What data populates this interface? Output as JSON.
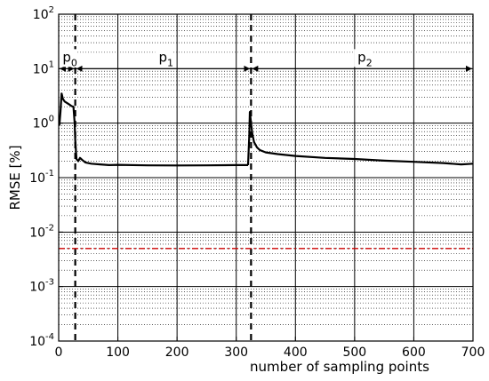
{
  "chart_data": {
    "type": "line",
    "title": "",
    "xlabel": "number of sampling points",
    "ylabel": "RMSE [%]",
    "xlim": [
      0,
      700
    ],
    "ylim": [
      0.0001,
      100
    ],
    "yscale": "log",
    "grid": true,
    "x_ticks": [
      0,
      100,
      200,
      300,
      400,
      500,
      600,
      700
    ],
    "y_ticks": [
      {
        "base": "10",
        "exp": "-4",
        "value": 0.0001
      },
      {
        "base": "10",
        "exp": "-3",
        "value": 0.001
      },
      {
        "base": "10",
        "exp": "-2",
        "value": 0.01
      },
      {
        "base": "10",
        "exp": "-1",
        "value": 0.1
      },
      {
        "base": "10",
        "exp": "0",
        "value": 1
      },
      {
        "base": "10",
        "exp": "1",
        "value": 10
      },
      {
        "base": "10",
        "exp": "2",
        "value": 100
      }
    ],
    "series": [
      {
        "color": "#000000",
        "style": "solid",
        "points": [
          [
            1,
            0.9
          ],
          [
            3,
            1.6
          ],
          [
            5,
            3.5
          ],
          [
            7,
            2.8
          ],
          [
            10,
            2.5
          ],
          [
            14,
            2.35
          ],
          [
            18,
            2.2
          ],
          [
            22,
            2.05
          ],
          [
            25,
            2.0
          ],
          [
            27,
            1.0
          ],
          [
            28,
            0.5
          ],
          [
            30,
            0.22
          ],
          [
            33,
            0.2
          ],
          [
            36,
            0.23
          ],
          [
            40,
            0.21
          ],
          [
            45,
            0.19
          ],
          [
            55,
            0.18
          ],
          [
            70,
            0.175
          ],
          [
            85,
            0.17
          ],
          [
            100,
            0.172
          ],
          [
            150,
            0.168
          ],
          [
            200,
            0.167
          ],
          [
            250,
            0.168
          ],
          [
            300,
            0.17
          ],
          [
            320,
            0.17
          ]
        ]
      },
      {
        "color": "#000000",
        "style": "solid",
        "points": [
          [
            320,
            0.17
          ],
          [
            322,
            0.6
          ],
          [
            323,
            1.6
          ],
          [
            325,
            1.0
          ],
          [
            327,
            0.65
          ],
          [
            330,
            0.45
          ],
          [
            335,
            0.36
          ],
          [
            340,
            0.32
          ],
          [
            350,
            0.29
          ],
          [
            370,
            0.27
          ],
          [
            400,
            0.25
          ],
          [
            450,
            0.23
          ],
          [
            500,
            0.22
          ],
          [
            550,
            0.205
          ],
          [
            600,
            0.195
          ],
          [
            650,
            0.185
          ],
          [
            680,
            0.175
          ],
          [
            700,
            0.18
          ]
        ]
      },
      {
        "color": "#cc0000",
        "style": "dash-dot",
        "points": [
          [
            0,
            0.005
          ],
          [
            700,
            0.005
          ]
        ]
      }
    ],
    "vlines": [
      28,
      325
    ],
    "annotations": [
      {
        "base": "p",
        "sub": "0",
        "x_start": 0,
        "x_end": 28
      },
      {
        "base": "p",
        "sub": "1",
        "x_start": 28,
        "x_end": 325
      },
      {
        "base": "p",
        "sub": "2",
        "x_start": 325,
        "x_end": 700
      }
    ],
    "annotation_y": 10
  }
}
